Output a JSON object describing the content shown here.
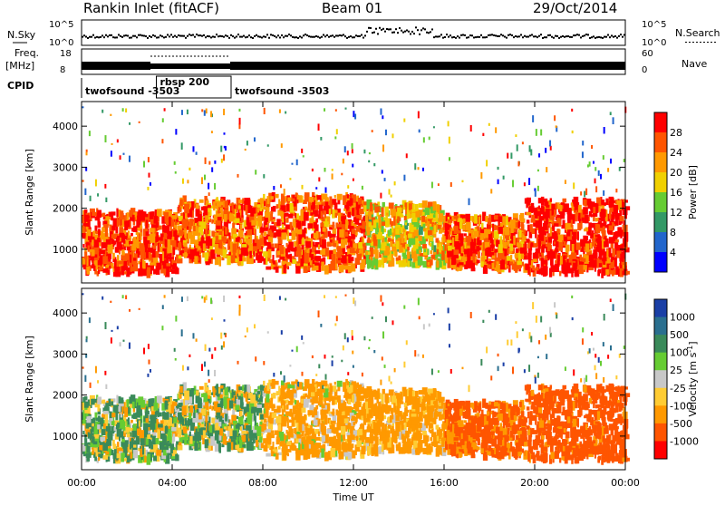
{
  "header": {
    "station": "Rankin Inlet (fitACF)",
    "beam": "Beam 01",
    "date": "29/Oct/2014"
  },
  "noise_panel": {
    "left_label": "N.Sky",
    "right_label": "N.Search",
    "left_ticks": [
      "10^5",
      "10^0"
    ],
    "right_ticks": [
      "10^5",
      "10^0"
    ]
  },
  "freq_panel": {
    "left_label_1": "Freq.",
    "left_label_2": "[MHz]",
    "right_label": "Nave",
    "left_ticks": [
      "18",
      "8"
    ],
    "right_ticks": [
      "60",
      "0"
    ]
  },
  "cpid_panel": {
    "label": "CPID",
    "segments": [
      {
        "name": "twofsound -3503",
        "start_hour": 0,
        "end_hour": 3.3
      },
      {
        "name": "rbsp 200",
        "start_hour": 3.3,
        "end_hour": 6.6
      },
      {
        "name": "twofsound -3503",
        "start_hour": 6.6,
        "end_hour": 24
      }
    ]
  },
  "power_panel": {
    "ylabel": "Slant Range [km]",
    "colorbar_label": "Power [dB]",
    "colorbar_ticks": [
      "28",
      "24",
      "20",
      "16",
      "12",
      "8",
      "4"
    ],
    "colors": [
      "#ff0000",
      "#ff5500",
      "#ff9900",
      "#f0d000",
      "#66cc33",
      "#339966",
      "#2266cc",
      "#0000ff"
    ]
  },
  "velocity_panel": {
    "ylabel": "Slant Range [km]",
    "colorbar_label": "Velocity [m s",
    "colorbar_label_sup": "-1",
    "colorbar_label_end": "]",
    "colorbar_ticks": [
      "1000",
      "500",
      "100",
      "25",
      "-25",
      "-100",
      "-500",
      "-1000"
    ],
    "colors": [
      "#1a3fa6",
      "#2a6f8f",
      "#3a8a5a",
      "#66cc33",
      "#c8c8c8",
      "#ffcc33",
      "#ff9900",
      "#ff5500",
      "#ff0000"
    ]
  },
  "axis": {
    "xlabel": "Time UT",
    "x_ticks": [
      "00:00",
      "04:00",
      "08:00",
      "12:00",
      "16:00",
      "20:00",
      "00:00"
    ],
    "y_ticks": [
      "1000",
      "2000",
      "3000",
      "4000"
    ]
  },
  "chart_data": {
    "type": "heatmap",
    "title": "Rankin Inlet (fitACF)",
    "subtitle": "Beam 01",
    "xlabel": "Time UT",
    "ylabel": "Slant Range [km]",
    "xlim": [
      0,
      24
    ],
    "ylim": [
      180,
      4600
    ],
    "x_tick_hours": [
      0,
      4,
      8,
      12,
      16,
      20,
      24
    ],
    "y_ticks_km": [
      1000,
      2000,
      3000,
      4000
    ],
    "power_range_db": [
      0,
      30
    ],
    "velocity_range": [
      -1000,
      1000
    ],
    "scatter_regions": [
      {
        "start_hour": 0.0,
        "end_hour": 4.2,
        "range_km": [
          400,
          1900
        ],
        "power_db": 26,
        "velocity": 80
      },
      {
        "start_hour": 4.2,
        "end_hour": 8.0,
        "range_km": [
          700,
          2200
        ],
        "power_db": 24,
        "velocity": 70
      },
      {
        "start_hour": 8.0,
        "end_hour": 12.5,
        "range_km": [
          500,
          2300
        ],
        "power_db": 25,
        "velocity": -200
      },
      {
        "start_hour": 12.5,
        "end_hour": 16.0,
        "range_km": [
          600,
          2100
        ],
        "power_db": 18,
        "velocity": -250
      },
      {
        "start_hour": 16.0,
        "end_hour": 19.5,
        "range_km": [
          500,
          1800
        ],
        "power_db": 24,
        "velocity": -600
      },
      {
        "start_hour": 19.5,
        "end_hour": 24.0,
        "range_km": [
          400,
          2200
        ],
        "power_db": 28,
        "velocity": -700
      }
    ]
  }
}
